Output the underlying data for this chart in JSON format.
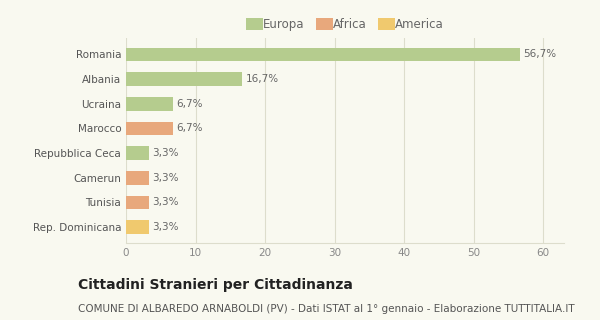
{
  "categories": [
    "Romania",
    "Albania",
    "Ucraina",
    "Marocco",
    "Repubblica Ceca",
    "Camerun",
    "Tunisia",
    "Rep. Dominicana"
  ],
  "values": [
    56.7,
    16.7,
    6.7,
    6.7,
    3.3,
    3.3,
    3.3,
    3.3
  ],
  "labels": [
    "56,7%",
    "16,7%",
    "6,7%",
    "6,7%",
    "3,3%",
    "3,3%",
    "3,3%",
    "3,3%"
  ],
  "bar_colors": [
    "#b5cc8e",
    "#b5cc8e",
    "#b5cc8e",
    "#e8a87c",
    "#b5cc8e",
    "#e8a87c",
    "#e8a87c",
    "#f0c96e"
  ],
  "legend_labels": [
    "Europa",
    "Africa",
    "America"
  ],
  "legend_colors": [
    "#b5cc8e",
    "#e8a87c",
    "#f0c96e"
  ],
  "xlim": [
    0,
    63
  ],
  "xticks": [
    0,
    10,
    20,
    30,
    40,
    50,
    60
  ],
  "title": "Cittadini Stranieri per Cittadinanza",
  "subtitle": "COMUNE DI ALBAREDO ARNABOLDI (PV) - Dati ISTAT al 1° gennaio - Elaborazione TUTTITALIA.IT",
  "background_color": "#f9f9f0",
  "grid_color": "#ddddcc",
  "bar_height": 0.55,
  "title_fontsize": 10,
  "subtitle_fontsize": 7.5,
  "label_fontsize": 7.5,
  "tick_fontsize": 7.5,
  "legend_fontsize": 8.5
}
